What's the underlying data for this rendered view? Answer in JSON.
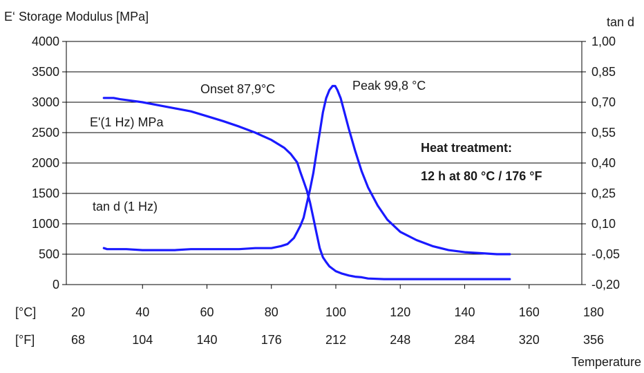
{
  "chart_data": {
    "type": "line",
    "title": "",
    "ylabel_left": "E‘ Storage Modulus [MPa]",
    "ylabel_right": "tan d",
    "xlabel": "Temperature",
    "x_unit_c": "[°C]",
    "x_unit_f": "[°F]",
    "xlim": [
      20,
      180
    ],
    "ylim_left": [
      0,
      4000
    ],
    "ylim_right": [
      -0.2,
      1.0
    ],
    "x_ticks_c": [
      "20",
      "40",
      "60",
      "80",
      "100",
      "120",
      "140",
      "160",
      "180"
    ],
    "x_ticks_f": [
      "68",
      "104",
      "140",
      "176",
      "212",
      "248",
      "284",
      "320",
      "356"
    ],
    "y_ticks_left": [
      "0",
      "500",
      "1000",
      "1500",
      "2000",
      "2500",
      "3000",
      "3500",
      "4000"
    ],
    "y_ticks_right": [
      "-0,20",
      "-0,05",
      "0,10",
      "0,25",
      "0,40",
      "0,55",
      "0,70",
      "0,85",
      "1,00"
    ],
    "grid": "horizontal",
    "line_color": "#1a1aff",
    "series": [
      {
        "name": "E'(1 Hz) MPa",
        "axis": "left",
        "x": [
          28,
          31,
          33,
          36,
          40,
          45,
          50,
          55,
          60,
          65,
          70,
          75,
          80,
          84,
          86,
          88,
          89,
          90,
          91,
          92,
          93,
          94,
          95,
          96,
          97,
          98,
          100,
          102,
          104,
          106,
          108,
          110,
          115,
          120,
          130,
          140,
          154
        ],
        "y": [
          3070,
          3070,
          3050,
          3030,
          3000,
          2950,
          2900,
          2850,
          2770,
          2690,
          2600,
          2500,
          2380,
          2250,
          2150,
          2010,
          1850,
          1700,
          1550,
          1350,
          1100,
          850,
          600,
          450,
          370,
          300,
          220,
          180,
          150,
          130,
          120,
          100,
          90,
          90,
          90,
          90,
          90
        ]
      },
      {
        "name": "tan d (1 Hz)",
        "axis": "right",
        "x": [
          28,
          29,
          35,
          40,
          45,
          50,
          55,
          60,
          65,
          70,
          75,
          80,
          83,
          85,
          87,
          88,
          89,
          90,
          91,
          92,
          93,
          94,
          95,
          96,
          97,
          98,
          99,
          99.8,
          100.5,
          101.5,
          102.5,
          104,
          106,
          108,
          110,
          113,
          116,
          120,
          125,
          130,
          135,
          140,
          145,
          150,
          154
        ],
        "y": [
          -0.02,
          -0.025,
          -0.025,
          -0.03,
          -0.03,
          -0.03,
          -0.025,
          -0.025,
          -0.025,
          -0.025,
          -0.02,
          -0.02,
          -0.01,
          0.0,
          0.03,
          0.06,
          0.09,
          0.13,
          0.2,
          0.27,
          0.35,
          0.45,
          0.55,
          0.65,
          0.72,
          0.76,
          0.78,
          0.78,
          0.76,
          0.72,
          0.66,
          0.57,
          0.46,
          0.36,
          0.28,
          0.19,
          0.12,
          0.06,
          0.02,
          -0.01,
          -0.03,
          -0.04,
          -0.045,
          -0.05,
          -0.05
        ]
      }
    ],
    "annotations": {
      "onset": "Onset  87,9°C",
      "peak": "Peak  99,8 °C",
      "e_label": "E'(1 Hz) MPa",
      "tan_label": "tan d (1 Hz)",
      "heat_title": "Heat treatment:",
      "heat_detail": "12 h at 80 °C / 176 °F"
    }
  }
}
